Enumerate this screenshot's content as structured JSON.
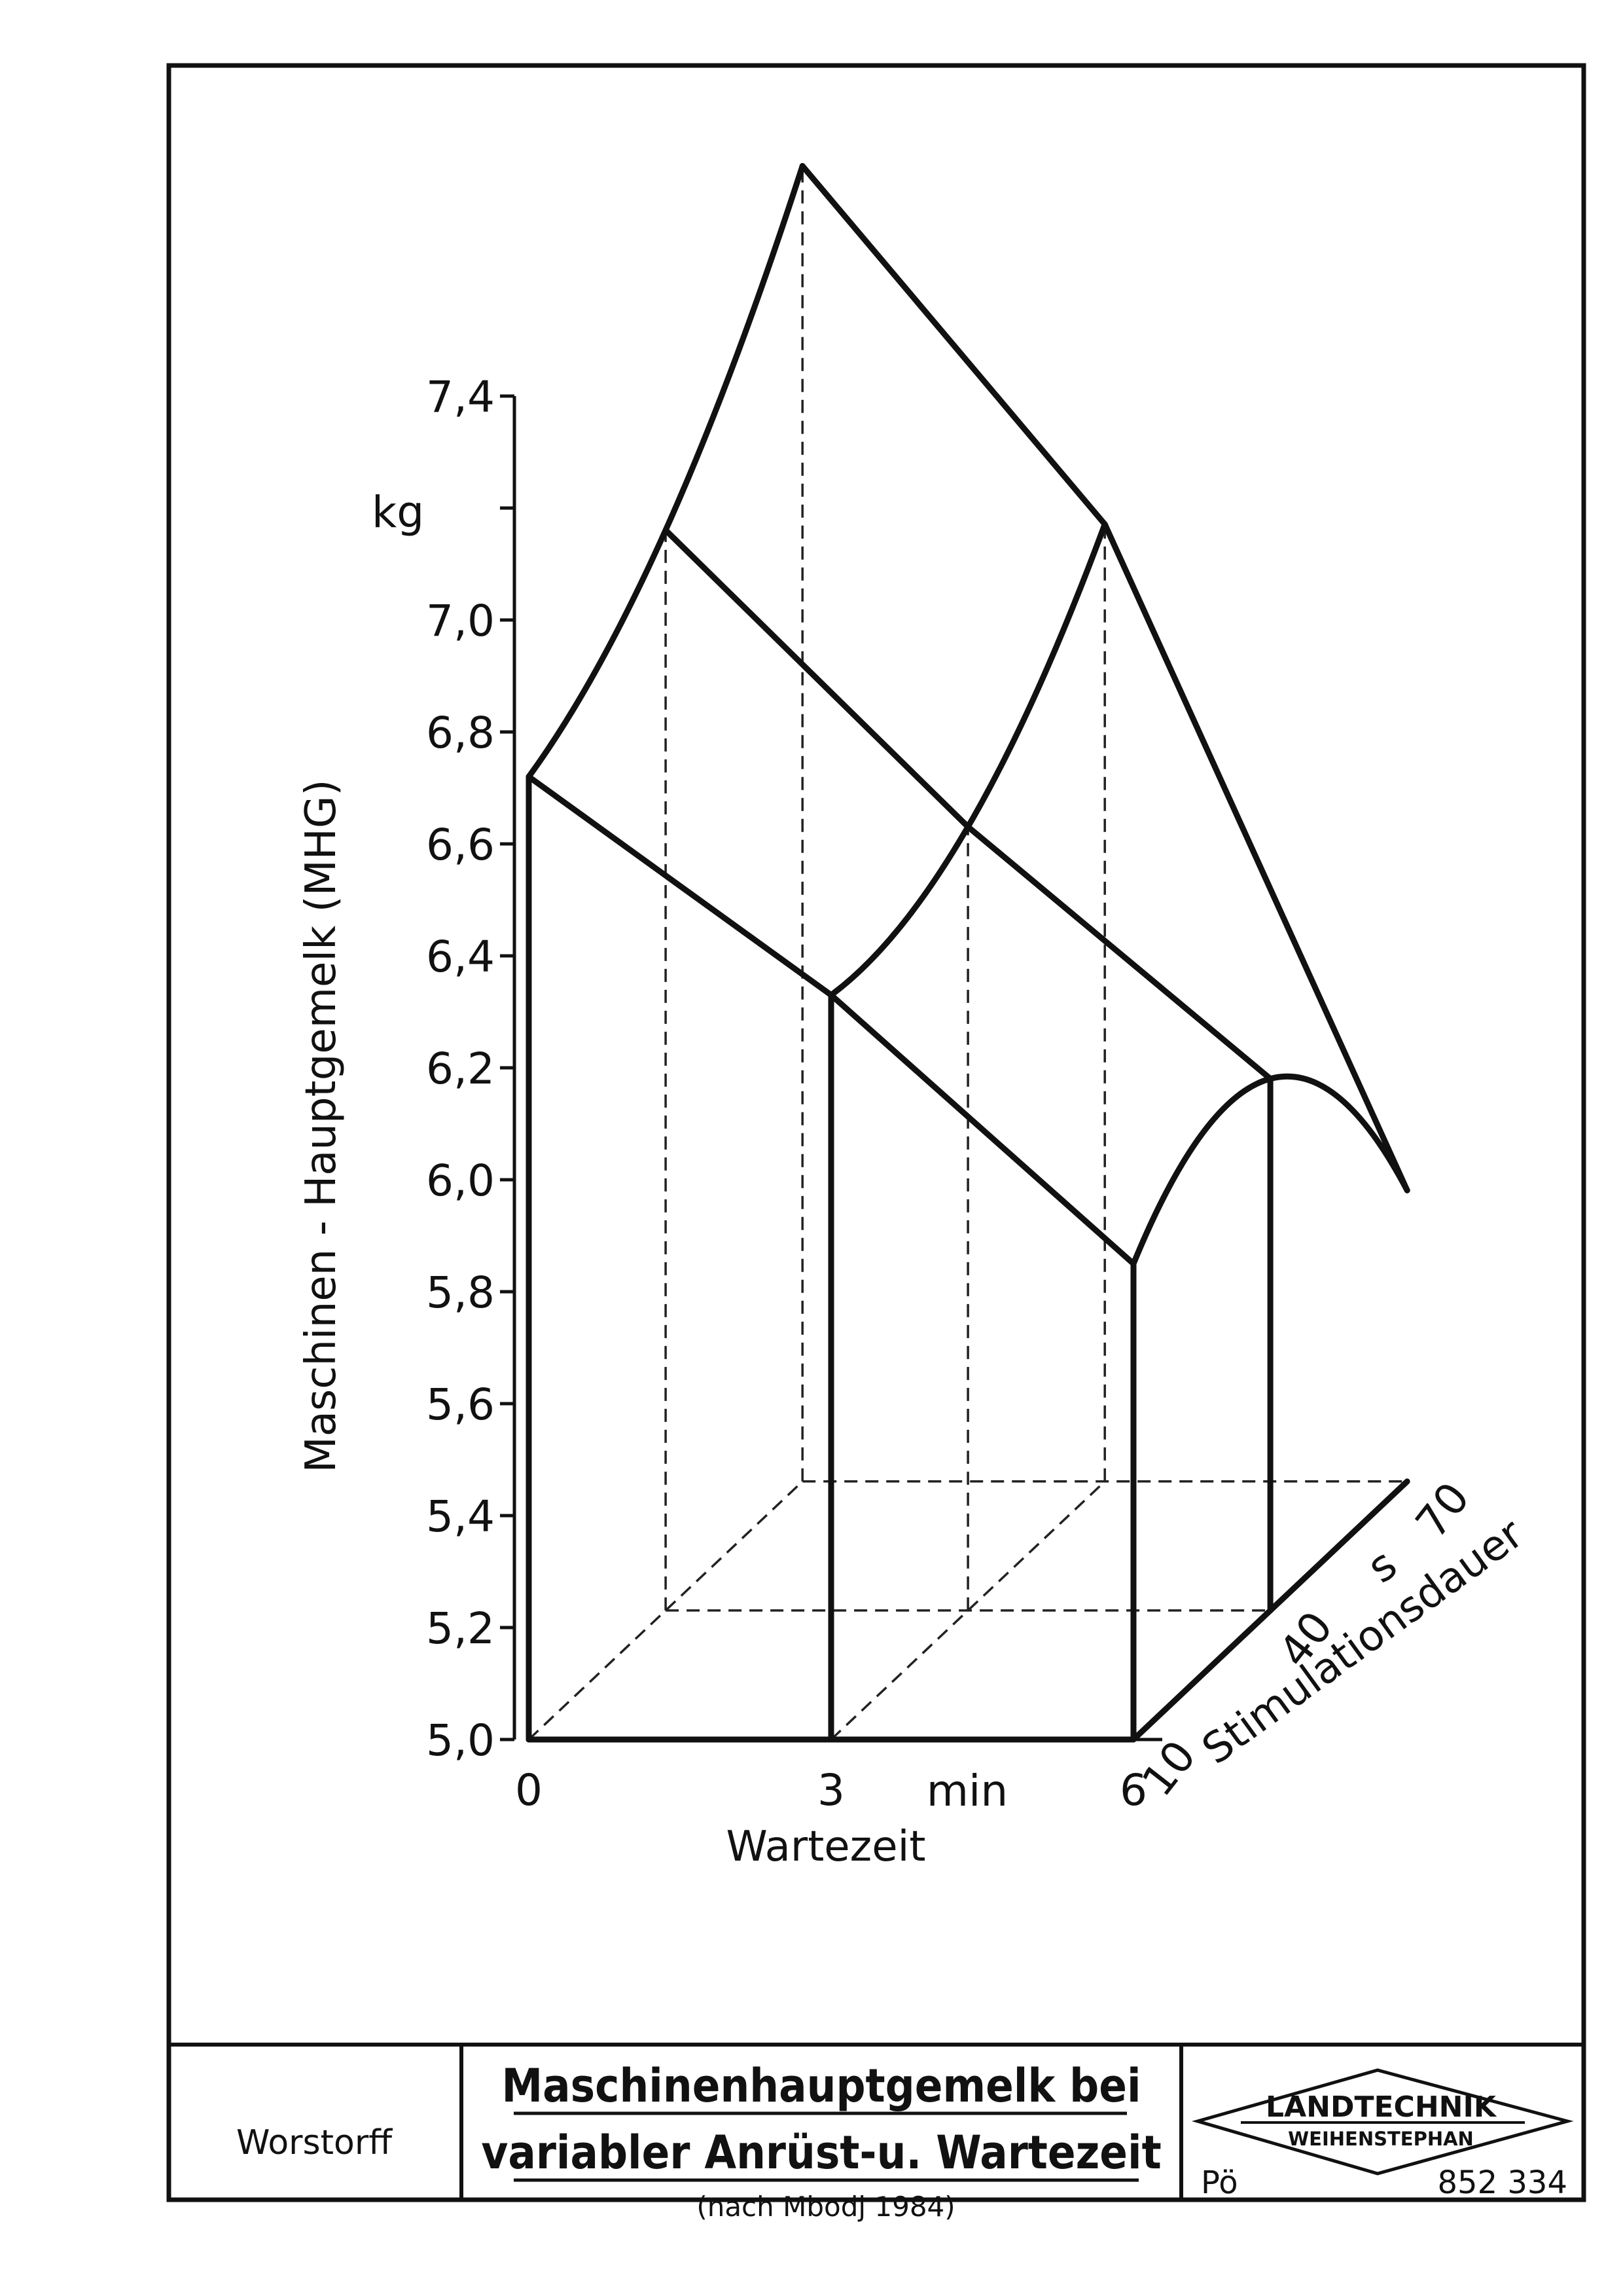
{
  "chart_data": {
    "type": "surface-3d",
    "ylabel": "Maschinen - Hauptgemelk (MHG)",
    "yunit": "kg",
    "yticks": [
      "5,0",
      "5,2",
      "5,4",
      "5,6",
      "5,8",
      "6,0",
      "6,2",
      "6,4",
      "6,6",
      "6,8",
      "7,0",
      "7,4"
    ],
    "ylim": [
      5.0,
      7.4
    ],
    "xlabel": "Wartezeit",
    "xunit": "min",
    "xticks": [
      "0",
      "3",
      "6"
    ],
    "zlabel": "Stimulationsdauer",
    "zunit": "s",
    "zticks": [
      "10",
      "40",
      "70"
    ],
    "x": [
      0,
      3,
      6
    ],
    "z": [
      10,
      40,
      70
    ],
    "mhg_kg": [
      {
        "stimulationsdauer_s": 10,
        "wartezeit_min": [
          0,
          3,
          6
        ],
        "values": [
          6.72,
          6.33,
          5.85
        ]
      },
      {
        "stimulationsdauer_s": 40,
        "wartezeit_min": [
          0,
          3,
          6
        ],
        "values": [
          6.93,
          6.4,
          5.95
        ]
      },
      {
        "stimulationsdauer_s": 70,
        "wartezeit_min": [
          0,
          3,
          6
        ],
        "values": [
          7.35,
          6.71,
          5.52
        ]
      }
    ]
  },
  "footer": {
    "author": "Worstorff",
    "title_line1": "Maschinenhauptgemelk bei",
    "title_line2": "variabler Anrüst-u. Wartezeit",
    "note": "(nach Mbodj 1984)",
    "logo_line1": "LANDTECHNIK",
    "logo_line2": "WEIHENSTEPHAN",
    "code_left": "Pö",
    "code_right": "852 334"
  }
}
